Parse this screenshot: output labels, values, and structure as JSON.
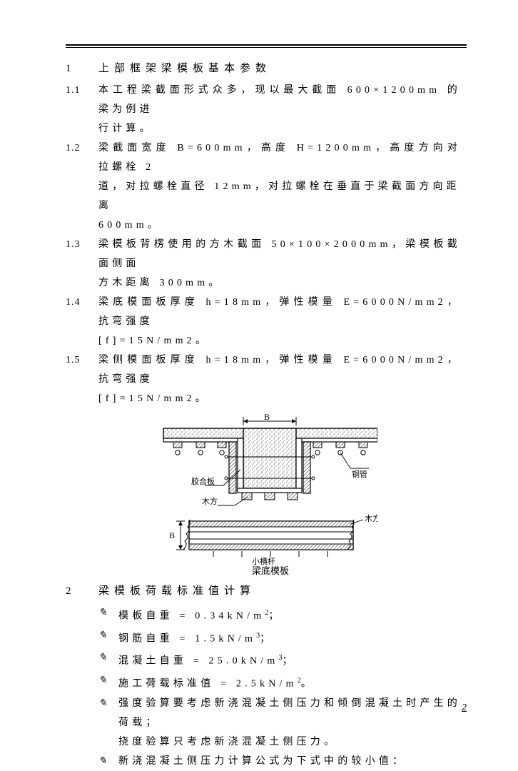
{
  "page_number": "2",
  "section1": {
    "num": "1",
    "title": "上部框架梁模板基本参数",
    "items": [
      {
        "num": "1.1",
        "lines": [
          "本工程梁截面形式众多，现以最大截面 600×1200mm 的梁为例进",
          "行计算。"
        ]
      },
      {
        "num": "1.2",
        "lines": [
          "梁截面宽度 B=600mm，高度 H=1200mm，高度方向对拉螺栓 2",
          "道，对拉螺栓直径 12mm，对拉螺栓在垂直于梁截面方向距离",
          "600mm。"
        ]
      },
      {
        "num": "1.3",
        "lines": [
          "梁模板背楞使用的方木截面 50×100×2000mm，梁模板截面侧面",
          "方木距离 300mm。"
        ]
      },
      {
        "num": "1.4",
        "lines": [
          "梁底模面板厚度 h=18mm，弹性模量 E=6000N/mm2，抗弯强度",
          "[f]=15N/mm2。"
        ]
      },
      {
        "num": "1.5",
        "lines": [
          "梁侧模面板厚度 h=18mm，弹性模量 E=6000N/mm2，抗弯强度",
          "[f]=15N/mm2。"
        ]
      }
    ]
  },
  "diagram": {
    "labels": {
      "B": "B",
      "jiaoheban": "胶合板",
      "gangguan": "钢管",
      "mufang": "木方",
      "xiaohenggan": "小横杆",
      "caption": "梁底模板"
    },
    "colors": {
      "stroke": "#000000",
      "hatch": "#6b6b6b",
      "fill": "#ffffff",
      "dotfill": "#8a8a8a"
    },
    "stroke_width": {
      "main": 1.4,
      "thin": 0.9
    }
  },
  "section2": {
    "num": "2",
    "title": "梁模板荷载标准值计算",
    "bullets": [
      {
        "text": "模板自重 = 0.34kN/m",
        "sup": "2",
        "tail": "；"
      },
      {
        "text": "钢筋自重 = 1.5kN/m",
        "sup": "3",
        "tail": "；"
      },
      {
        "text": "混凝土自重 = 25.0kN/m",
        "sup": "3",
        "tail": "；"
      },
      {
        "text": "施工荷载标准值 = 2.5kN/m",
        "sup": "2",
        "tail": "。"
      },
      {
        "text": "强度验算要考虑新浇混凝土侧压力和倾倒混凝土时产生的荷载；",
        "cont": "挠度验算只考虑新浇混凝土侧压力。"
      },
      {
        "text": "新浇混凝土侧压力计算公式为下式中的较小值："
      }
    ]
  },
  "bullet_mark": "✎"
}
